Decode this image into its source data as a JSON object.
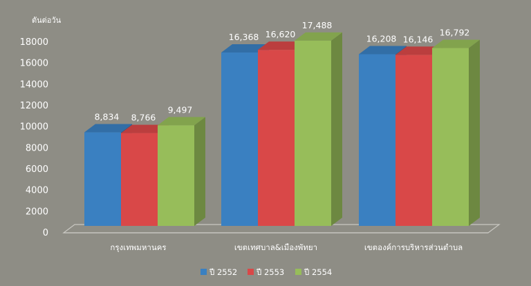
{
  "chart_data": {
    "type": "bar",
    "ylabel": "ตันต่อวัน",
    "ylim": [
      0,
      18000
    ],
    "yticks": [
      0,
      2000,
      4000,
      6000,
      8000,
      10000,
      12000,
      14000,
      16000,
      18000
    ],
    "grid": false,
    "legend_position": "bottom",
    "categories": [
      "กรุงเทพมหานคร",
      "เขตเทศบาล&เมืองพัทยา",
      "เขตองค์การบริหารส่วนตำบล"
    ],
    "series": [
      {
        "name": "ปี 2552",
        "color": "#3a80c1",
        "values": [
          8834,
          16368,
          16208
        ],
        "labels": [
          "8,834",
          "16,368",
          "16,208"
        ]
      },
      {
        "name": "ปี 2553",
        "color": "#d94848",
        "values": [
          8766,
          16620,
          16146
        ],
        "labels": [
          "8,766",
          "16,620",
          "16,146"
        ]
      },
      {
        "name": "ปี 2554",
        "color": "#97bd5a",
        "values": [
          9497,
          17488,
          16792
        ],
        "labels": [
          "9,497",
          "17,488",
          "16,792"
        ]
      }
    ]
  }
}
